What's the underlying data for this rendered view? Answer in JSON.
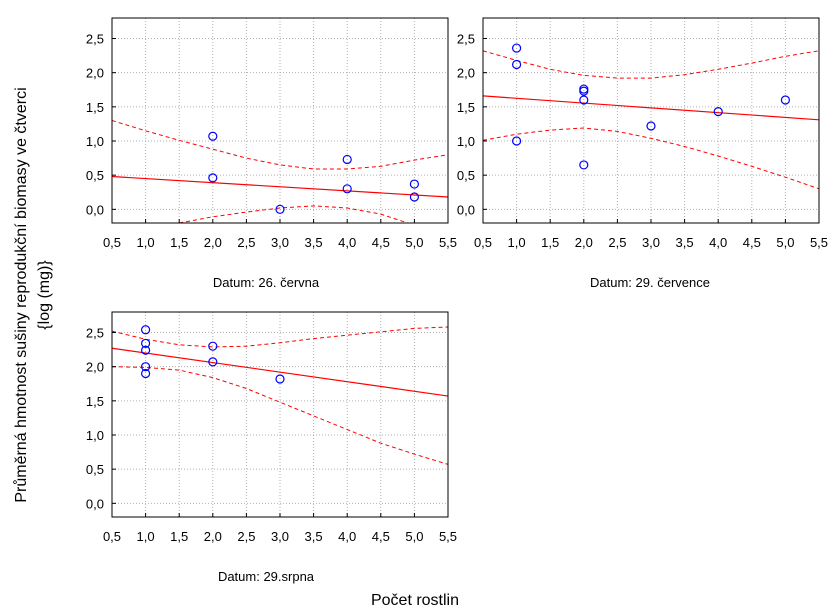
{
  "ylabel_lines": [
    "Průměrná hmotnost sušiny reprodukční biomasy ve čtverci",
    "{log (mg)}"
  ],
  "xlabel": "Počet rostlin",
  "colors": {
    "points": "#0000ff",
    "fit": "#ff0000",
    "grid": "#b0b0b0",
    "axes": "#000000"
  },
  "chart_data": [
    {
      "type": "scatter",
      "title": "Datum: 26. června",
      "xlim": [
        0.5,
        5.5
      ],
      "ylim": [
        -0.2,
        2.8
      ],
      "x_ticks": [
        "0,5",
        "1,0",
        "1,5",
        "2,0",
        "2,5",
        "3,0",
        "3,5",
        "4,0",
        "4,5",
        "5,0",
        "5,5"
      ],
      "y_ticks": [
        "0,0",
        "0,5",
        "1,0",
        "1,5",
        "2,0",
        "2,5"
      ],
      "grid": true,
      "points": {
        "x": [
          2,
          2,
          3,
          4,
          4,
          5,
          5
        ],
        "y": [
          1.07,
          0.46,
          0.0,
          0.73,
          0.3,
          0.37,
          0.18
        ]
      },
      "fit": {
        "x": [
          0.5,
          5.5
        ],
        "y": [
          0.48,
          0.18
        ]
      },
      "ci_upper": {
        "x": [
          0.5,
          1.0,
          1.5,
          2.0,
          2.5,
          3.0,
          3.5,
          4.0,
          4.5,
          5.0,
          5.5
        ],
        "y": [
          1.3,
          1.15,
          1.01,
          0.88,
          0.75,
          0.65,
          0.59,
          0.59,
          0.63,
          0.72,
          0.8
        ]
      },
      "ci_lower": {
        "x": [
          1.5,
          2.0,
          2.5,
          3.0,
          3.5,
          4.0,
          4.5,
          4.9
        ],
        "y": [
          -0.2,
          -0.11,
          -0.04,
          0.02,
          0.05,
          0.02,
          -0.07,
          -0.2
        ]
      }
    },
    {
      "type": "scatter",
      "title": "Datum: 29. července",
      "xlim": [
        0.5,
        5.5
      ],
      "ylim": [
        -0.2,
        2.8
      ],
      "x_ticks": [
        "0,5",
        "1,0",
        "1,5",
        "2,0",
        "2,5",
        "3,0",
        "3,5",
        "4,0",
        "4,5",
        "5,0",
        "5,5"
      ],
      "y_ticks": [
        "0,0",
        "0,5",
        "1,0",
        "1,5",
        "2,0",
        "2,5"
      ],
      "grid": true,
      "points": {
        "x": [
          1,
          1,
          1,
          2,
          2,
          2,
          2,
          3,
          4,
          5
        ],
        "y": [
          2.36,
          2.12,
          1.0,
          1.76,
          1.73,
          1.6,
          0.65,
          1.22,
          1.43,
          1.6
        ]
      },
      "fit": {
        "x": [
          0.5,
          5.5
        ],
        "y": [
          1.66,
          1.31
        ]
      },
      "ci_upper": {
        "x": [
          0.5,
          1.0,
          1.5,
          2.0,
          2.5,
          3.0,
          3.5,
          4.0,
          4.5,
          5.0,
          5.5
        ],
        "y": [
          2.32,
          2.18,
          2.05,
          1.96,
          1.92,
          1.92,
          1.97,
          2.05,
          2.14,
          2.24,
          2.32
        ]
      },
      "ci_lower": {
        "x": [
          0.5,
          1.0,
          1.5,
          2.0,
          2.5,
          3.0,
          3.5,
          4.0,
          4.5,
          5.0,
          5.5
        ],
        "y": [
          1.01,
          1.1,
          1.16,
          1.19,
          1.14,
          1.04,
          0.92,
          0.78,
          0.63,
          0.47,
          0.3
        ]
      }
    },
    {
      "type": "scatter",
      "title": "Datum: 29.srpna",
      "xlim": [
        0.5,
        5.5
      ],
      "ylim": [
        -0.2,
        2.8
      ],
      "x_ticks": [
        "0,5",
        "1,0",
        "1,5",
        "2,0",
        "2,5",
        "3,0",
        "3,5",
        "4,0",
        "4,5",
        "5,0",
        "5,5"
      ],
      "y_ticks": [
        "0,0",
        "0,5",
        "1,0",
        "1,5",
        "2,0",
        "2,5"
      ],
      "grid": true,
      "points": {
        "x": [
          1,
          1,
          1,
          1,
          1,
          2,
          2,
          3
        ],
        "y": [
          2.54,
          2.34,
          2.24,
          2.0,
          1.9,
          2.3,
          2.07,
          1.82
        ]
      },
      "fit": {
        "x": [
          0.5,
          5.5
        ],
        "y": [
          2.27,
          1.57
        ]
      },
      "ci_upper": {
        "x": [
          0.5,
          1.0,
          1.5,
          2.0,
          2.5,
          3.0,
          3.5,
          4.0,
          4.5,
          5.0,
          5.5
        ],
        "y": [
          2.52,
          2.4,
          2.32,
          2.29,
          2.3,
          2.35,
          2.41,
          2.46,
          2.51,
          2.56,
          2.58
        ]
      },
      "ci_lower": {
        "x": [
          0.5,
          1.0,
          1.5,
          2.0,
          2.5,
          3.0,
          3.5,
          4.0,
          4.5,
          5.0,
          5.5
        ],
        "y": [
          2.0,
          1.99,
          1.95,
          1.84,
          1.68,
          1.48,
          1.28,
          1.08,
          0.88,
          0.72,
          0.57
        ]
      }
    }
  ]
}
